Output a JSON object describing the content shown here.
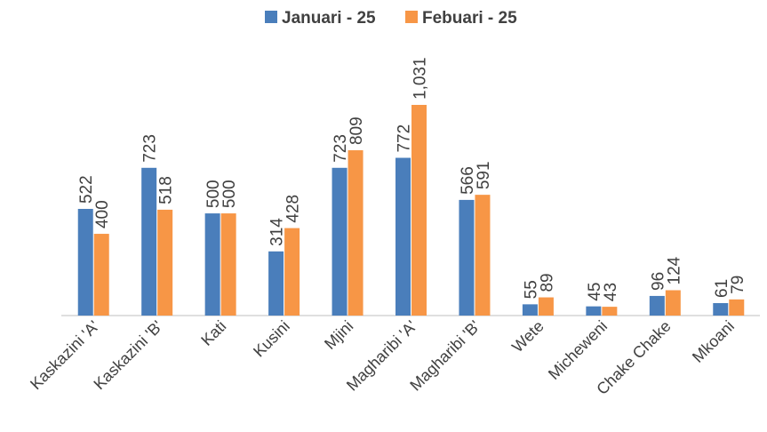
{
  "chart_data": {
    "type": "bar",
    "categories": [
      "Kaskazini 'A'",
      "Kaskazini 'B'",
      "Kati",
      "Kusini",
      "Mjini",
      "Magharibi 'A'",
      "Magharibi 'B'",
      "Wete",
      "Micheweni",
      "Chake Chake",
      "Mkoani"
    ],
    "series": [
      {
        "name": "Januari - 25",
        "color": "#4a7ebb",
        "values": [
          522,
          723,
          500,
          314,
          723,
          772,
          566,
          55,
          45,
          96,
          61
        ]
      },
      {
        "name": "Febuari - 25",
        "color": "#f79646",
        "values": [
          400,
          518,
          500,
          428,
          809,
          1031,
          591,
          89,
          43,
          124,
          79
        ],
        "value_labels": [
          "400",
          "518",
          "500",
          "428",
          "809",
          "1,031",
          "591",
          "89",
          "43",
          "124",
          "79"
        ]
      }
    ],
    "legend": "top"
  }
}
